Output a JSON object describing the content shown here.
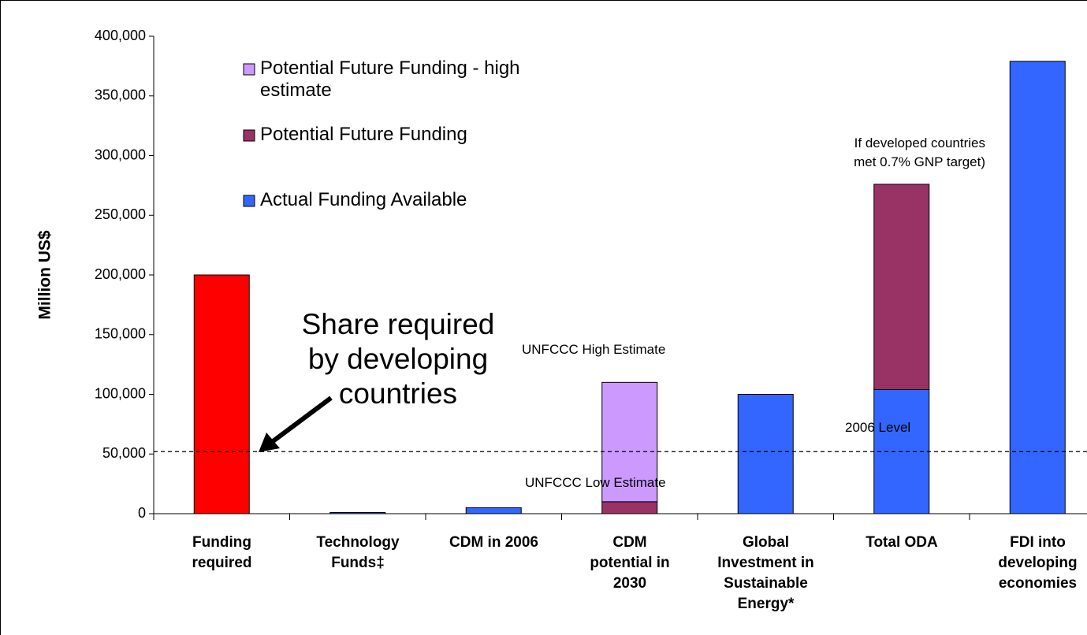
{
  "chart_data": {
    "type": "stacked_bar",
    "y_label": "Million US$",
    "categories": [
      "Funding\nrequired",
      "Technology\nFunds‡",
      "CDM in 2006",
      "CDM\npotential in\n2030",
      "Global\nInvestment in\nSustainable\nEnergy*",
      "Total ODA",
      "FDI into\ndeveloping\neconomies"
    ],
    "series": [
      {
        "name": "Actual Funding Available",
        "color": "#3366ff",
        "values": [
          200000,
          1000,
          5000,
          null,
          100000,
          104000,
          379000
        ]
      },
      {
        "name": "Potential Future Funding",
        "color": "#993366",
        "values": [
          null,
          null,
          null,
          10000,
          null,
          172000,
          null
        ]
      },
      {
        "name": "Potential Future Funding - high\nestimate",
        "color": "#cc99ff",
        "values": [
          null,
          null,
          null,
          100000,
          null,
          null,
          null
        ]
      }
    ],
    "highlight": {
      "index": 0,
      "color": "#ff0000"
    },
    "ylim": [
      0,
      400000
    ],
    "yticks": [
      0,
      {
        "value": 50000,
        "label": "50,000"
      },
      {
        "value": 100000,
        "label": "100,000"
      },
      {
        "value": 150000,
        "label": "150,000"
      },
      {
        "value": 200000,
        "label": "200,000"
      },
      {
        "value": 250000,
        "label": "250,000"
      },
      {
        "value": 300000,
        "label": "300,000"
      },
      {
        "value": 350000,
        "label": "350,000"
      },
      {
        "value": 400000,
        "label": "400,000"
      }
    ],
    "reference_line": {
      "value": 52000,
      "label": "2006 Level"
    },
    "annotations": [
      "Share required\nby developing\ncountries",
      "UNFCCC High Estimate",
      "UNFCCC Low Estimate",
      "If developed countries\nmet 0.7% GNP target)"
    ]
  }
}
